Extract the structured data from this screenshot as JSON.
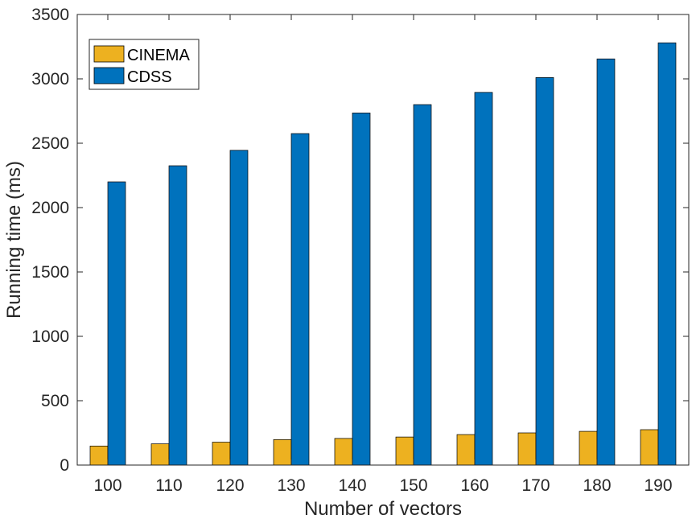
{
  "chart_data": {
    "type": "bar",
    "title": "",
    "xlabel": "Number of vectors",
    "ylabel": "Running time (ms)",
    "categories": [
      "100",
      "110",
      "120",
      "130",
      "140",
      "150",
      "160",
      "170",
      "180",
      "190"
    ],
    "series": [
      {
        "name": "CINEMA",
        "color": "#EDB120",
        "values": [
          148,
          165,
          178,
          198,
          207,
          218,
          237,
          250,
          262,
          275
        ]
      },
      {
        "name": "CDSS",
        "color": "#0072BD",
        "values": [
          2200,
          2325,
          2445,
          2575,
          2735,
          2800,
          2895,
          3010,
          3155,
          3280
        ]
      }
    ],
    "ylim": [
      0,
      3500
    ],
    "yticks": [
      "0",
      "500",
      "1000",
      "1500",
      "2000",
      "2500",
      "3000",
      "3500"
    ],
    "grid": false,
    "legend": "top-left"
  }
}
